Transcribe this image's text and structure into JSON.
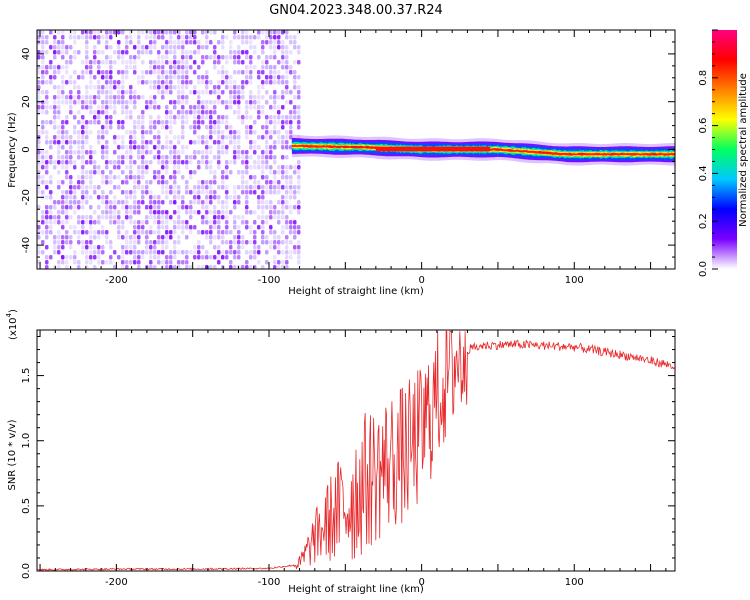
{
  "title": "GN04.2023.348.00.37.R24",
  "chart_data": [
    {
      "type": "heatmap",
      "xlabel": "Height of straight line (km)",
      "ylabel": "Frequency (Hz)",
      "xlim": [
        -252,
        166
      ],
      "ylim": [
        -50,
        50
      ],
      "x_ticks": [
        -200,
        -100,
        0,
        100
      ],
      "x_tick_labels": [
        "-200",
        "-100",
        "0",
        "100"
      ],
      "y_ticks": [
        -40,
        -20,
        0,
        20,
        40
      ],
      "y_tick_labels": [
        "-40",
        "-20",
        "0",
        "20",
        "40"
      ],
      "colorbar": {
        "label": "Normalized spectral amplitude",
        "range": [
          0,
          1
        ],
        "ticks": [
          0.0,
          0.2,
          0.4,
          0.6,
          0.8
        ],
        "tick_labels": [
          "0.0",
          "0.2",
          "0.4",
          "0.6",
          "0.8"
        ],
        "colormap": [
          "#ffffff",
          "#7a00ff",
          "#0000ff",
          "#00c8ff",
          "#00ff60",
          "#ffff00",
          "#ff8000",
          "#ff0000",
          "#ff0080"
        ]
      },
      "regions": [
        {
          "description": "noise",
          "x": [
            -252,
            -80
          ],
          "freq": [
            -50,
            50
          ],
          "amplitude": [
            0.0,
            0.2
          ]
        },
        {
          "description": "signal band",
          "x": [
            -85,
            166
          ],
          "center_freq": [
            [
              -85,
              1.5
            ],
            [
              -40,
              1.0
            ],
            [
              0,
              0.0
            ],
            [
              50,
              0.0
            ],
            [
              95,
              -2.0
            ],
            [
              166,
              -2.0
            ]
          ],
          "amplitude": [
            0.5,
            1.0
          ]
        }
      ]
    },
    {
      "type": "line",
      "xlabel": "Height of straight line (km)",
      "ylabel": "SNR (10 * v/v)",
      "y_scale_label": "(x10",
      "y_scale_exp": "4",
      "xlim": [
        -252,
        166
      ],
      "ylim": [
        0,
        1.85
      ],
      "x_ticks": [
        -200,
        -100,
        0,
        100
      ],
      "x_tick_labels": [
        "-200",
        "-100",
        "0",
        "100"
      ],
      "y_ticks": [
        0.0,
        0.5,
        1.0,
        1.5
      ],
      "y_tick_labels": [
        "0.0",
        "0.5",
        "1.0",
        "1.5"
      ],
      "series": [
        {
          "color": "#e8282b",
          "x": [
            -252,
            -200,
            -150,
            -100,
            -80,
            -70,
            -60,
            -50,
            -40,
            -30,
            -20,
            -10,
            0,
            10,
            20,
            30,
            40,
            60,
            80,
            100,
            120,
            140,
            166
          ],
          "y": [
            0.01,
            0.015,
            0.015,
            0.02,
            0.05,
            0.25,
            0.4,
            0.5,
            0.65,
            0.75,
            0.85,
            0.9,
            1.05,
            1.35,
            1.6,
            1.7,
            1.73,
            1.74,
            1.73,
            1.72,
            1.68,
            1.64,
            1.57
          ]
        }
      ]
    }
  ],
  "colors": {
    "line": "#e8282b",
    "axis": "#000000"
  }
}
